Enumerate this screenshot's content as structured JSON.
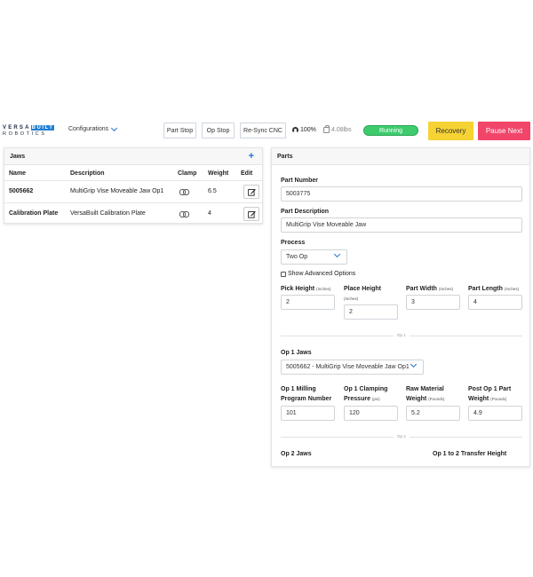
{
  "header": {
    "logo_top_left": "VERSA",
    "logo_top_right": "BUILT",
    "logo_bottom": "ROBOTICS",
    "config_label": "Configurations",
    "buttons": [
      "Part Stop",
      "Op Stop",
      "Re-Sync CNC"
    ],
    "gauge_value": "100%",
    "weight_value": "4.08lbs",
    "status": "Running",
    "recovery_label": "Recovery",
    "pause_label": "Pause Next",
    "colors": {
      "running": "#3ecb6e",
      "recovery": "#f6d233",
      "pause": "#f2456a",
      "accent": "#1f6fd1"
    }
  },
  "jaws": {
    "title": "Jaws",
    "add_icon": "plus-icon",
    "columns": [
      "Name",
      "Description",
      "Clamp",
      "Weight",
      "Edit"
    ],
    "rows": [
      {
        "name": "5005662",
        "description": "MultiGrip Vise Moveable Jaw Op1",
        "weight": "6.5"
      },
      {
        "name": "Calibration Plate",
        "description": "VersaBuilt Calibration Plate",
        "weight": "4"
      }
    ]
  },
  "parts": {
    "title": "Parts",
    "part_number_label": "Part Number",
    "part_number": "5003775",
    "part_description_label": "Part Description",
    "part_description": "MultiGrip Vise Moveable Jaw",
    "process_label": "Process",
    "process_value": "Two Op",
    "advanced_label": "Show Advanced Options",
    "pick_height_label": "Pick Height",
    "pick_height_unit": "(Inches)",
    "pick_height": "2",
    "place_height_label": "Place Height",
    "place_height_unit": "(Inches)",
    "place_height": "2",
    "part_width_label": "Part Width",
    "part_width_unit": "(Inches)",
    "part_width": "3",
    "part_length_label": "Part Length",
    "part_length_unit": "(Inches)",
    "part_length": "4",
    "op1_divider": "Op 1",
    "op1_jaws_label": "Op 1 Jaws",
    "op1_jaws_value": "5005662 - MultiGrip Vise Moveable Jaw Op1",
    "op1_milling_label_1": "Op 1 Milling",
    "op1_milling_label_2": "Program Number",
    "op1_milling": "101",
    "op1_clamping_label_1": "Op 1 Clamping",
    "op1_clamping_label_2": "Pressure",
    "op1_clamping_unit": "(psi)",
    "op1_clamping": "120",
    "raw_weight_label_1": "Raw Material",
    "raw_weight_label_2": "Weight",
    "raw_weight_unit": "(Pounds)",
    "raw_weight": "5.2",
    "post_weight_label_1": "Post Op 1 Part",
    "post_weight_label_2": "Weight",
    "post_weight_unit": "(Pounds)",
    "post_weight": "4.9",
    "op2_divider": "Op 2",
    "op2_jaws_label": "Op 2 Jaws",
    "transfer_height_label": "Op 1 to 2 Transfer Height"
  }
}
